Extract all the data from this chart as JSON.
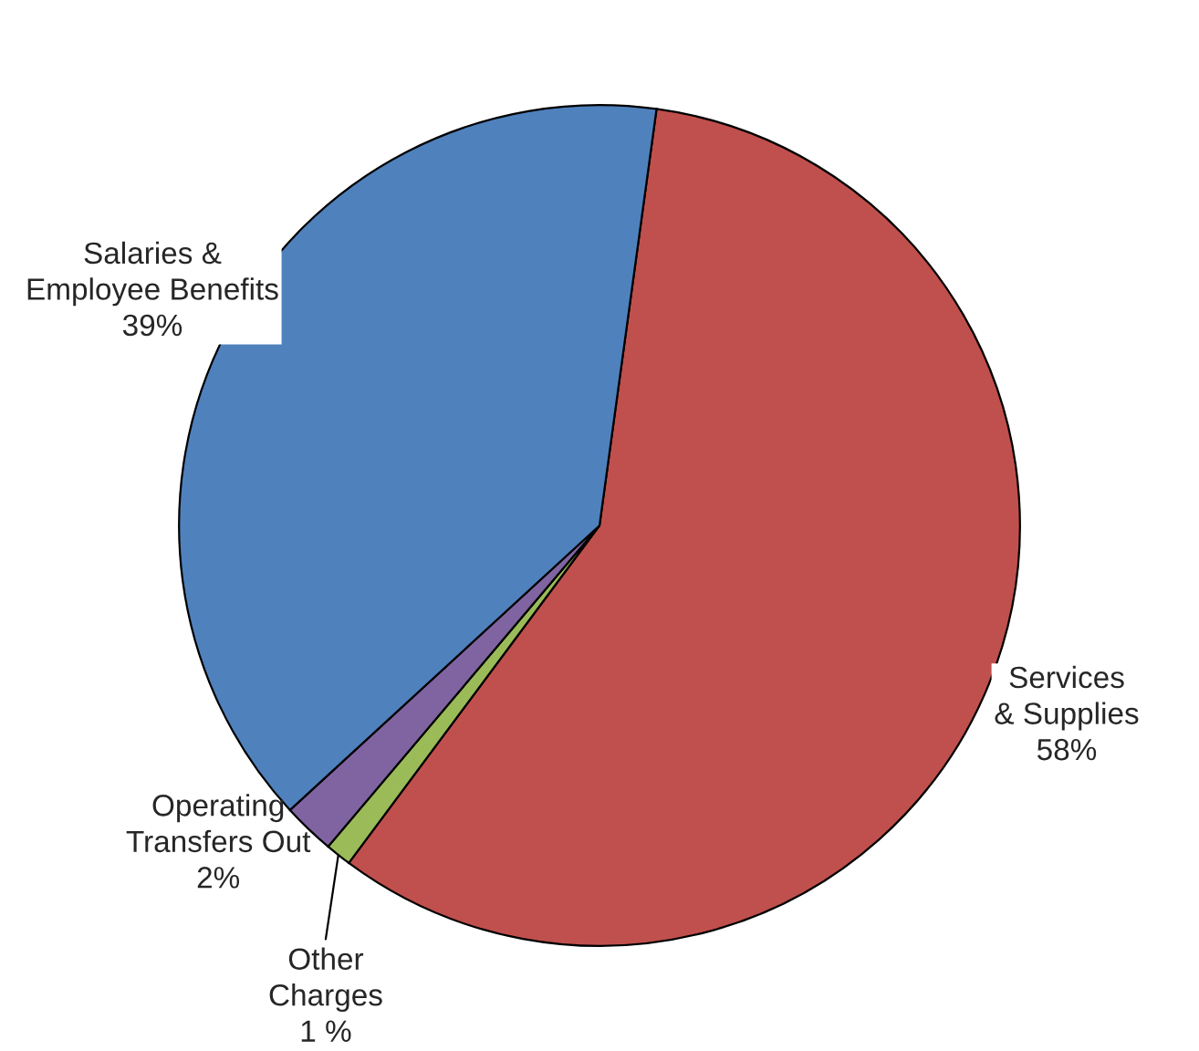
{
  "chart_data": {
    "type": "pie",
    "categories": [
      "Services\n& Supplies",
      "Other\nCharges",
      "Operating\nTransfers Out",
      "Salaries &\nEmployee Benefits"
    ],
    "values": [
      58,
      1,
      2,
      39
    ],
    "value_labels": [
      "58%",
      "1 %",
      "2%",
      "39%"
    ],
    "colors": [
      "#c0504d",
      "#9bbb59",
      "#8064a2",
      "#4f81bd"
    ]
  }
}
